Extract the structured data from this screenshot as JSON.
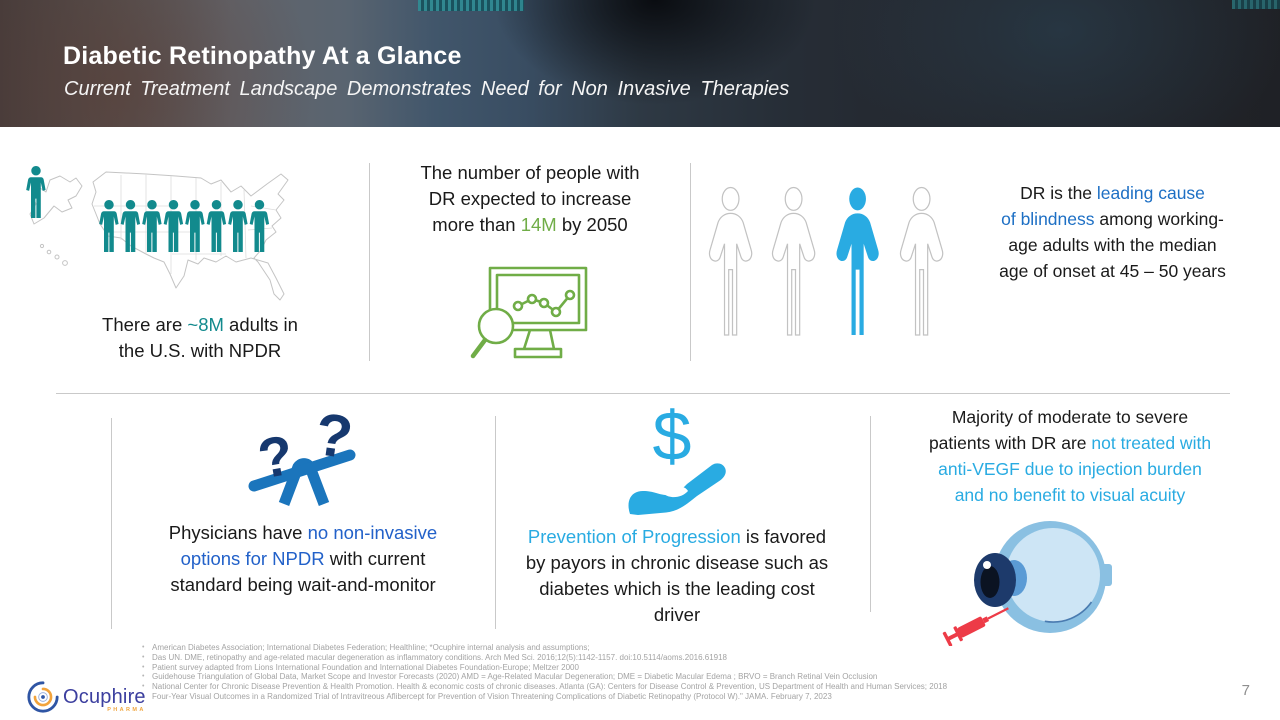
{
  "header": {
    "title": "Diabetic Retinopathy At a Glance",
    "subtitle": "Current Treatment Landscape Demonstrates Need for Non Invasive Therapies"
  },
  "colors": {
    "teal": "#128a8d",
    "green": "#70ad47",
    "sky": "#29abe2",
    "blue": "#1d6fc4",
    "royal": "#2261c9",
    "navy": "#16386e",
    "beam_blue": "#1b75bc",
    "syringe_red": "#ed3b47",
    "divider_gray": "#c9c9c9",
    "footer_gray": "#a3a3a3"
  },
  "stats": {
    "npdr": {
      "runs": [
        {
          "t": "There are "
        },
        {
          "t": "~8M",
          "hl": "teal"
        },
        {
          "t": " adults in\nthe U.S. with NPDR"
        }
      ]
    },
    "increase": {
      "runs": [
        {
          "t": "The number of people with\nDR expected to increase\nmore than "
        },
        {
          "t": "14M",
          "hl": "green"
        },
        {
          "t": " by 2050"
        }
      ]
    },
    "blindness": {
      "runs": [
        {
          "t": "DR is the "
        },
        {
          "t": "leading cause\nof blindness",
          "hl": "blue"
        },
        {
          "t": " among working-\nage adults with the median\nage of onset at 45 – 50 years"
        }
      ]
    },
    "physicians": {
      "runs": [
        {
          "t": "Physicians have "
        },
        {
          "t": "no non-invasive\noptions for NPDR",
          "hl": "royal"
        },
        {
          "t": " with current\nstandard being wait-and-monitor"
        }
      ]
    },
    "prevention": {
      "runs": [
        {
          "t": "Prevention of Progression",
          "hl": "sky"
        },
        {
          "t": " is favored\nby payors in chronic disease such as\ndiabetes which is the leading cost\ndriver"
        }
      ]
    },
    "majority": {
      "runs": [
        {
          "t": "Majority of moderate to severe\npatients with DR are "
        },
        {
          "t": "not treated with\nanti-VEGF due to injection burden\nand no benefit to visual acuity",
          "hl": "sky"
        }
      ]
    }
  },
  "icons": {
    "us_map": "us-map-icon",
    "population": "population-people-icon",
    "chart_monitor": "chart-monitor-magnifier-icon",
    "workers": "working-age-adults-icon",
    "seesaw": "question-balance-icon",
    "question_glyph": "?",
    "dollar_hand": "dollar-hand-icon",
    "dollar_glyph": "$",
    "eye_syringe": "eye-injection-icon"
  },
  "footer": {
    "references": [
      "American Diabetes Association; International Diabetes Federation; Healthline; *Ocuphire internal analysis and assumptions;",
      "Das UN. DME, retinopathy and age-related macular degeneration as inflammatory conditions. Arch Med Sci. 2016;12(5):1142-1157. doi:10.5114/aoms.2016.61918",
      "Patient survey adapted from Lions International Foundation and International Diabetes Foundation-Europe; Meltzer 2000",
      "Guidehouse Triangulation of Global Data, Market Scope and Investor Forecasts (2020) AMD = Age-Related Macular Degeneration;  DME = Diabetic Macular Edema ; BRVO = Branch Retinal Vein Occlusion",
      "National Center for Chronic Disease Prevention & Health Promotion. Health & economic costs of chronic diseases. Atlanta (GA): Centers for Disease Control & Prevention, US Department of Health and Human Services; 2018",
      "Four-Year Visual Outcomes in a Randomized Trial of Intravitreous Aflibercept for Prevention of Vision Threatening Complications of Diabetic Retinopathy (Protocol W).\" JAMA. February 7, 2023"
    ],
    "page_number": "7",
    "logo_text": "Ocuphire",
    "logo_subtext": "PHARMA"
  }
}
